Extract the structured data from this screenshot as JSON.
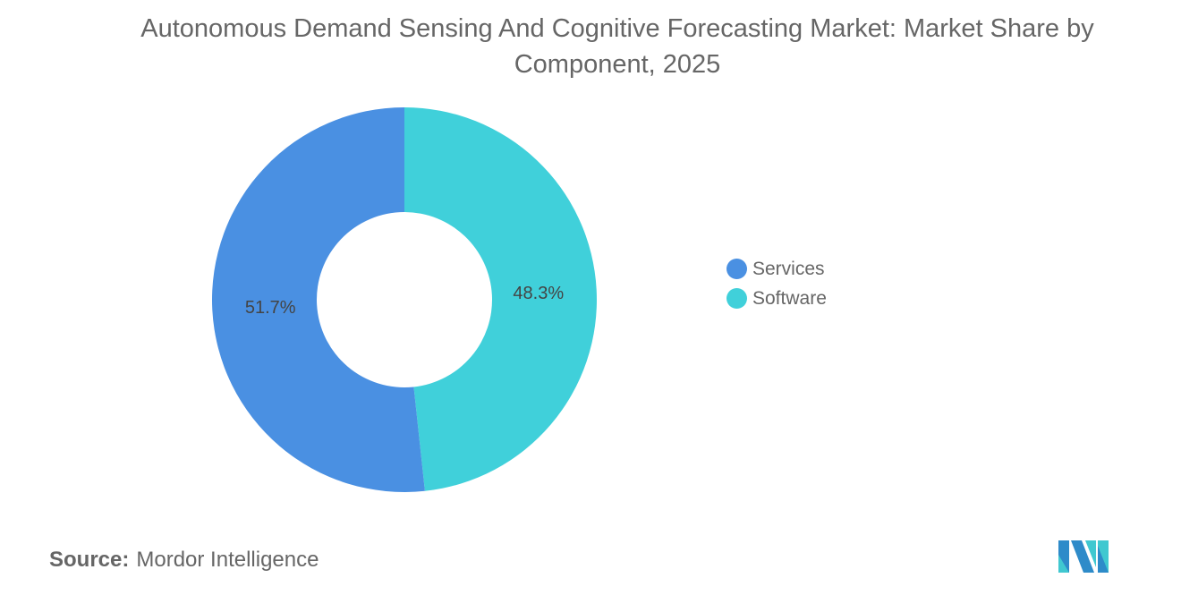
{
  "chart_data": {
    "type": "pie",
    "variant": "donut",
    "title": "Autonomous Demand Sensing And Cognitive Forecasting Market: Market Share by Component, 2025",
    "slices": [
      {
        "name": "Software",
        "value": 48.3,
        "label": "48.3%",
        "color": "#40D0DA"
      },
      {
        "name": "Services",
        "value": 51.7,
        "label": "51.7%",
        "color": "#4A90E2"
      }
    ],
    "legend": {
      "placement": "right",
      "entries": [
        {
          "name": "Services",
          "color": "#4A90E2"
        },
        {
          "name": "Software",
          "color": "#40D0DA"
        }
      ]
    }
  },
  "source": {
    "label": "Source:",
    "value": "Mordor Intelligence"
  },
  "logo": {
    "text": "Mordor Intelligence"
  }
}
